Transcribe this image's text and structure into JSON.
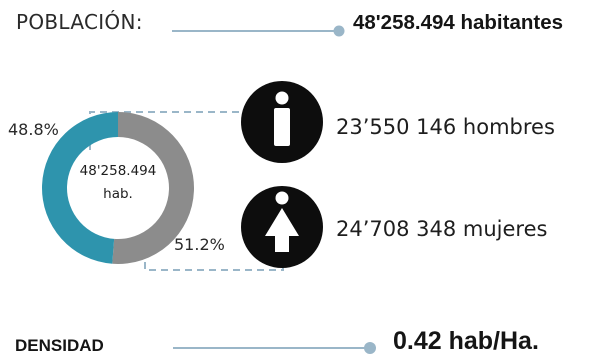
{
  "header": {
    "label": "POBLACIÓN:",
    "value": "48'258.494 habitantes"
  },
  "chart_data": {
    "type": "pie",
    "style": "donut",
    "center_text": [
      "48'258.494",
      "hab."
    ],
    "slices": [
      {
        "label": "48.8%",
        "value": 48.8,
        "color": "#2e94ad"
      },
      {
        "label": "51.2%",
        "value": 51.2,
        "color": "#8c8c8c"
      }
    ]
  },
  "legend": {
    "men": {
      "text": "23’550 146 hombres",
      "icon": "man-icon"
    },
    "women": {
      "text": "24’708 348 mujeres",
      "icon": "woman-icon"
    }
  },
  "density": {
    "label": "DENSIDAD",
    "value": "0.42 hab/Ha."
  },
  "colors": {
    "line": "#9ab6c8",
    "dashed": "#9ab6c8",
    "icon_bg": "#0d0d0d",
    "icon_fg": "#ffffff"
  }
}
